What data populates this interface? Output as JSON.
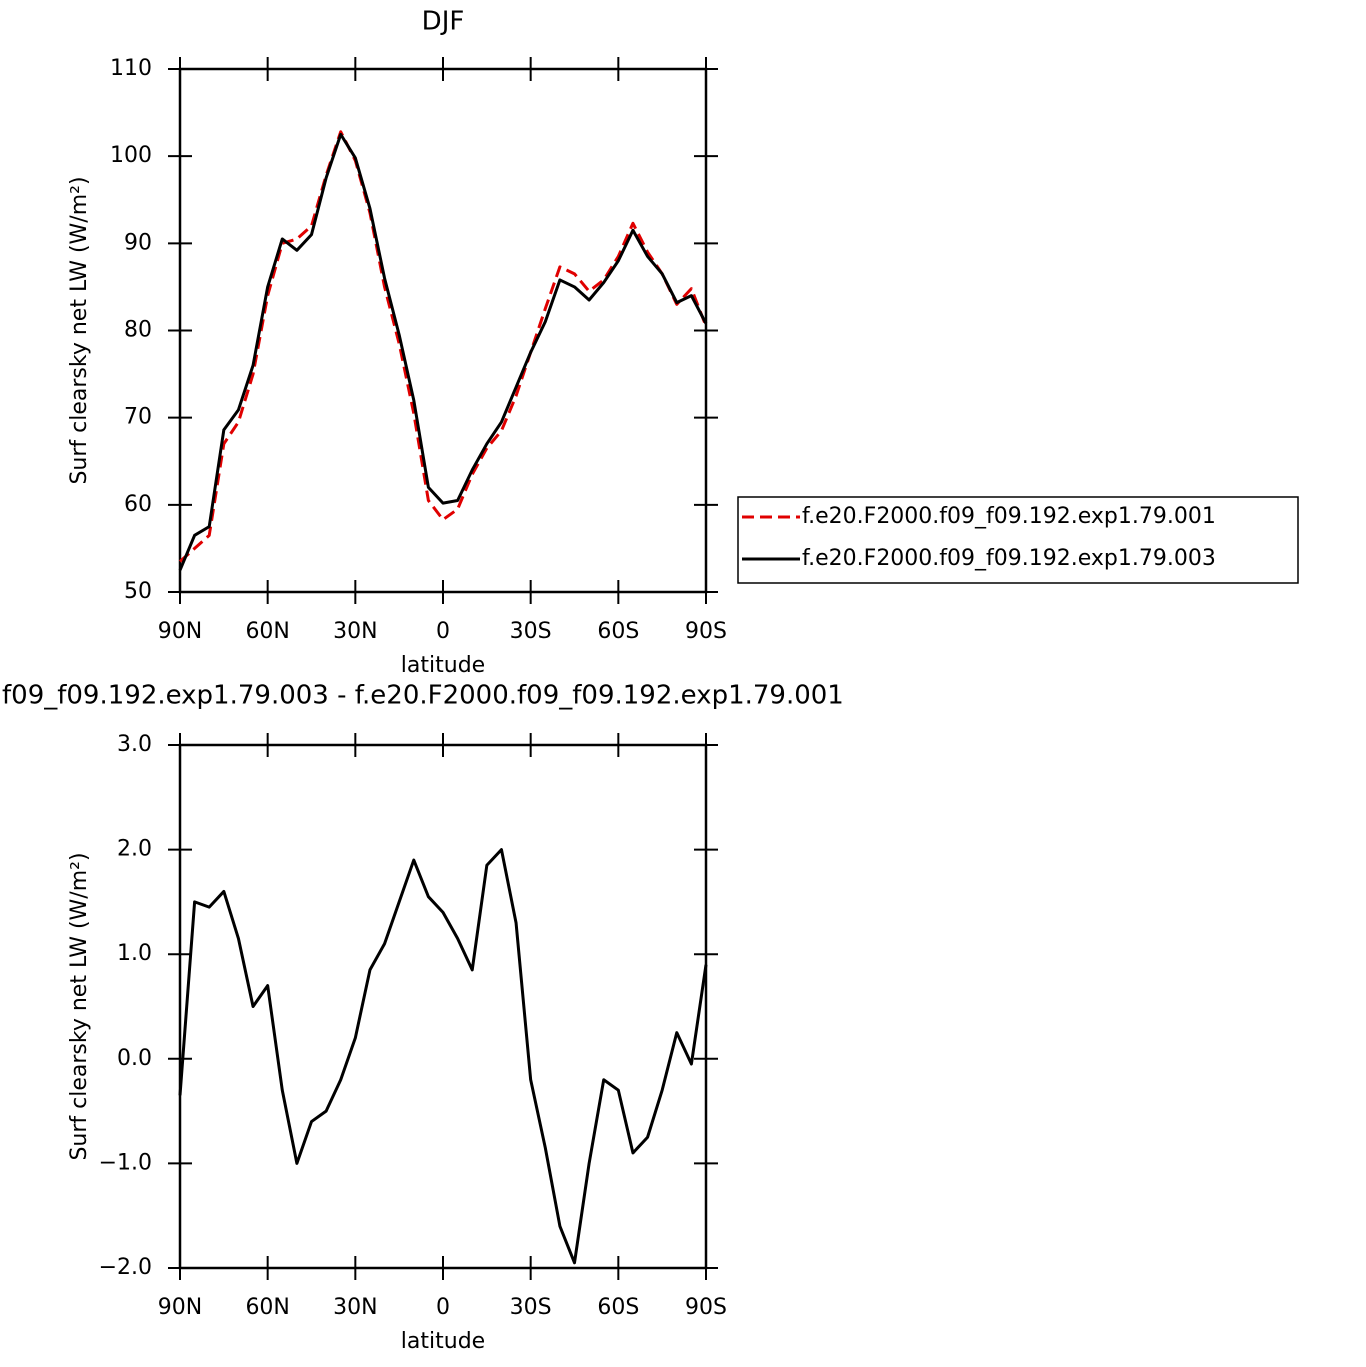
{
  "chart_data": [
    {
      "type": "line",
      "title": "DJF",
      "xlabel": "latitude",
      "ylabel": "Surf clearsky net LW (W/m²)",
      "x": [
        90,
        85,
        80,
        75,
        70,
        65,
        60,
        55,
        50,
        45,
        40,
        35,
        30,
        25,
        20,
        15,
        10,
        5,
        0,
        -5,
        -10,
        -15,
        -20,
        -25,
        -30,
        -35,
        -40,
        -45,
        -50,
        -55,
        -60,
        -65,
        -70,
        -75,
        -80,
        -85,
        -90
      ],
      "xlim": [
        90,
        -90
      ],
      "xticks": [
        {
          "value": 90,
          "label": "90N"
        },
        {
          "value": 60,
          "label": "60N"
        },
        {
          "value": 30,
          "label": "30N"
        },
        0,
        {
          "value": -30,
          "label": "30S"
        },
        {
          "value": -60,
          "label": "60S"
        },
        {
          "value": -90,
          "label": "90S"
        }
      ],
      "ylim": [
        50,
        110
      ],
      "yticks": [
        50,
        60,
        70,
        80,
        90,
        100,
        110
      ],
      "legend": "right",
      "series": [
        {
          "name": "f.e20.F2000.f09_f09.192.exp1.79.001",
          "color": "#e00000",
          "dashed": true,
          "values": [
            53.5,
            55,
            56.5,
            67,
            69.5,
            75,
            84,
            90,
            90.5,
            92,
            97.8,
            102.8,
            99.5,
            93.5,
            85,
            78.5,
            70.5,
            60.5,
            58.3,
            59.5,
            63.5,
            66.5,
            68.5,
            72.5,
            77.5,
            82.5,
            87.3,
            86.5,
            84.5,
            85.8,
            88.5,
            92.3,
            89,
            86.5,
            83,
            84.8,
            80.5
          ]
        },
        {
          "name": "f.e20.F2000.f09_f09.192.exp1.79.003",
          "color": "#000000",
          "dashed": false,
          "values": [
            52.5,
            56.5,
            57.5,
            68.6,
            70.9,
            76,
            85,
            90.5,
            89.2,
            91,
            97.5,
            102.5,
            99.8,
            94,
            86,
            79.5,
            72,
            62,
            60.2,
            60.5,
            64,
            67,
            69.5,
            73.5,
            77.5,
            81,
            85.8,
            85,
            83.5,
            85.5,
            88,
            91.5,
            88.5,
            86.5,
            83.2,
            84,
            80.8
          ]
        }
      ]
    },
    {
      "type": "line",
      "title": "f09_f09.192.exp1.79.003 - f.e20.F2000.f09_f09.192.exp1.79.001",
      "xlabel": "latitude",
      "ylabel": "Surf clearsky net LW (W/m²)",
      "x": [
        90,
        85,
        80,
        75,
        70,
        65,
        60,
        55,
        50,
        45,
        40,
        35,
        30,
        25,
        20,
        15,
        10,
        5,
        0,
        -5,
        -10,
        -15,
        -20,
        -25,
        -30,
        -35,
        -40,
        -45,
        -50,
        -55,
        -60,
        -65,
        -70,
        -75,
        -80,
        -85,
        -90
      ],
      "xlim": [
        90,
        -90
      ],
      "xticks": [
        {
          "value": 90,
          "label": "90N"
        },
        {
          "value": 60,
          "label": "60N"
        },
        {
          "value": 30,
          "label": "30N"
        },
        0,
        {
          "value": -30,
          "label": "30S"
        },
        {
          "value": -60,
          "label": "60S"
        },
        {
          "value": -90,
          "label": "90S"
        }
      ],
      "ylim": [
        -2,
        3
      ],
      "yticks": [
        {
          "value": -2,
          "label": "−2.0"
        },
        {
          "value": -1,
          "label": "−1.0"
        },
        {
          "value": 0,
          "label": "0.0"
        },
        {
          "value": 1,
          "label": "1.0"
        },
        {
          "value": 2,
          "label": "2.0"
        },
        {
          "value": 3,
          "label": "3.0"
        }
      ],
      "series": [
        {
          "color": "#000000",
          "dashed": false,
          "values": [
            -0.35,
            1.5,
            1.45,
            1.6,
            1.15,
            0.5,
            0.7,
            -0.3,
            -1.0,
            -0.6,
            -0.5,
            -0.2,
            0.2,
            0.85,
            1.1,
            1.5,
            1.9,
            1.55,
            1.4,
            1.15,
            0.85,
            1.85,
            2.0,
            1.3,
            -0.2,
            -0.85,
            -1.6,
            -1.95,
            -1.0,
            -0.2,
            -0.3,
            -0.9,
            -0.75,
            -0.3,
            0.25,
            -0.05,
            0.9
          ]
        }
      ]
    }
  ]
}
